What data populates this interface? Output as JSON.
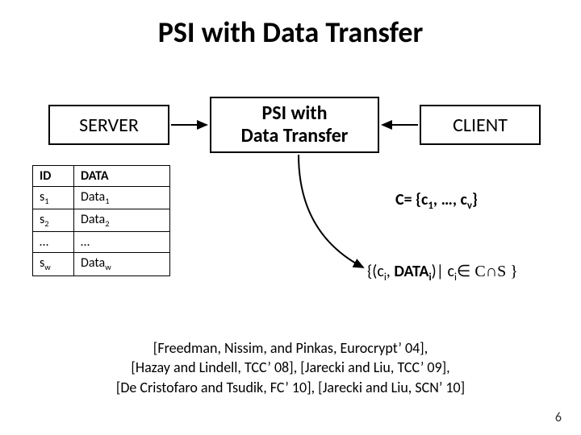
{
  "title": "PSI with Data Transfer",
  "server_label": "SERVER",
  "center_line1": "PSI with",
  "center_line2": "Data Transfer",
  "client_label": "CLIENT",
  "table": {
    "head_id": "ID",
    "head_data": "DATA",
    "rows": [
      {
        "id_base": "s",
        "id_sub": "1",
        "d_base": "Data",
        "d_sub": "1"
      },
      {
        "id_base": "s",
        "id_sub": "2",
        "d_base": "Data",
        "d_sub": "2"
      },
      {
        "id_base": "…",
        "id_sub": "",
        "d_base": "…",
        "d_sub": ""
      },
      {
        "id_base": "s",
        "id_sub": "w",
        "d_base": "Data",
        "d_sub": "w"
      }
    ]
  },
  "cset_prefix": "C= {c",
  "cset_sub1": "1",
  "cset_mid": ", …, c",
  "cset_sub2": "v",
  "cset_suffix": "}",
  "result": {
    "open": "{(c",
    "ci_sub": "i",
    "comma": ", ",
    "data_word": "DATA",
    "data_sub": "i",
    "mid": ")| c",
    "cond_sub": "i",
    "in": "∈",
    "sets": " C∩S }"
  },
  "refs_line1": "[Freedman, Nissim, and Pinkas, Eurocrypt’ 04],",
  "refs_line2": "[Hazay and Lindell, TCC’ 08], [Jarecki and Liu, TCC’ 09],",
  "refs_line3": "[De Cristofaro and Tsudik, FC’ 10], [Jarecki and Liu, SCN’ 10]",
  "page_number": "6",
  "colors": {
    "title_color": "#000000",
    "border_color": "#000000",
    "background": "#ffffff",
    "arrow_color": "#000000"
  }
}
